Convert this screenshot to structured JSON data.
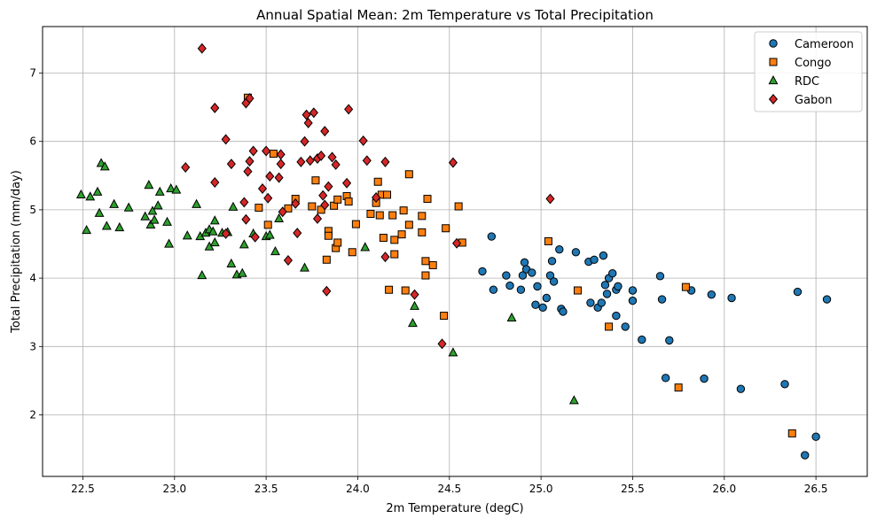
{
  "chart_data": {
    "type": "scatter",
    "title": "Annual Spatial Mean: 2m Temperature vs Total Precipitation",
    "xlabel": "2m Temperature (degC)",
    "ylabel": "Total Precipitation (mm/day)",
    "xlim": [
      22.28,
      26.78
    ],
    "ylim": [
      1.1,
      7.68
    ],
    "x_ticks": [
      22.5,
      23.0,
      23.5,
      24.0,
      24.5,
      25.0,
      25.5,
      26.0,
      26.5
    ],
    "x_tick_labels": [
      "22.5",
      "23.0",
      "23.5",
      "24.0",
      "24.5",
      "25.0",
      "25.5",
      "26.0",
      "26.5"
    ],
    "y_ticks": [
      2,
      3,
      4,
      5,
      6,
      7
    ],
    "y_tick_labels": [
      "2",
      "3",
      "4",
      "5",
      "6",
      "7"
    ],
    "grid": true,
    "legend_position": "top-right",
    "series": [
      {
        "name": "Cameroon",
        "color": "#1f77b4",
        "marker": "circle",
        "points": [
          [
            24.68,
            4.1
          ],
          [
            24.73,
            4.61
          ],
          [
            24.74,
            3.83
          ],
          [
            24.81,
            4.04
          ],
          [
            24.83,
            3.89
          ],
          [
            24.89,
            3.83
          ],
          [
            24.9,
            4.04
          ],
          [
            24.91,
            4.23
          ],
          [
            24.92,
            4.13
          ],
          [
            24.95,
            4.08
          ],
          [
            24.97,
            3.61
          ],
          [
            24.98,
            3.88
          ],
          [
            25.01,
            3.57
          ],
          [
            25.03,
            3.71
          ],
          [
            25.05,
            4.04
          ],
          [
            25.06,
            4.25
          ],
          [
            25.07,
            3.95
          ],
          [
            25.1,
            4.42
          ],
          [
            25.11,
            3.55
          ],
          [
            25.12,
            3.51
          ],
          [
            25.19,
            4.38
          ],
          [
            25.26,
            4.24
          ],
          [
            25.27,
            3.64
          ],
          [
            25.29,
            4.27
          ],
          [
            25.31,
            3.57
          ],
          [
            25.33,
            3.64
          ],
          [
            25.34,
            4.33
          ],
          [
            25.35,
            3.9
          ],
          [
            25.36,
            3.77
          ],
          [
            25.37,
            4.0
          ],
          [
            25.39,
            4.07
          ],
          [
            25.41,
            3.45
          ],
          [
            25.41,
            3.83
          ],
          [
            25.42,
            3.88
          ],
          [
            25.46,
            3.29
          ],
          [
            25.5,
            3.82
          ],
          [
            25.5,
            3.67
          ],
          [
            25.55,
            3.1
          ],
          [
            25.65,
            4.03
          ],
          [
            25.66,
            3.69
          ],
          [
            25.68,
            2.54
          ],
          [
            25.7,
            3.09
          ],
          [
            25.82,
            3.82
          ],
          [
            25.89,
            2.53
          ],
          [
            25.93,
            3.76
          ],
          [
            26.04,
            3.71
          ],
          [
            26.09,
            2.38
          ],
          [
            26.33,
            2.45
          ],
          [
            26.4,
            3.8
          ],
          [
            26.56,
            3.69
          ],
          [
            26.5,
            1.68
          ],
          [
            26.44,
            1.41
          ]
        ]
      },
      {
        "name": "Congo",
        "color": "#ff7f0e",
        "marker": "square",
        "points": [
          [
            23.4,
            6.64
          ],
          [
            23.46,
            5.03
          ],
          [
            23.51,
            4.78
          ],
          [
            23.54,
            5.82
          ],
          [
            23.62,
            5.02
          ],
          [
            23.66,
            5.16
          ],
          [
            23.75,
            5.05
          ],
          [
            23.77,
            5.43
          ],
          [
            23.8,
            5.0
          ],
          [
            23.83,
            4.27
          ],
          [
            23.84,
            4.69
          ],
          [
            23.84,
            4.62
          ],
          [
            23.87,
            5.06
          ],
          [
            23.88,
            4.44
          ],
          [
            23.89,
            5.15
          ],
          [
            23.89,
            4.52
          ],
          [
            23.94,
            5.2
          ],
          [
            23.95,
            5.12
          ],
          [
            23.97,
            4.38
          ],
          [
            23.99,
            4.79
          ],
          [
            24.07,
            4.94
          ],
          [
            24.1,
            5.1
          ],
          [
            24.11,
            5.41
          ],
          [
            24.12,
            4.92
          ],
          [
            24.13,
            5.22
          ],
          [
            24.14,
            4.59
          ],
          [
            24.16,
            5.22
          ],
          [
            24.17,
            3.83
          ],
          [
            24.19,
            4.92
          ],
          [
            24.2,
            4.35
          ],
          [
            24.2,
            4.56
          ],
          [
            24.24,
            4.64
          ],
          [
            24.25,
            4.99
          ],
          [
            24.26,
            3.82
          ],
          [
            24.28,
            5.52
          ],
          [
            24.28,
            4.78
          ],
          [
            24.35,
            4.91
          ],
          [
            24.35,
            4.67
          ],
          [
            24.37,
            4.04
          ],
          [
            24.37,
            4.25
          ],
          [
            24.38,
            5.16
          ],
          [
            24.41,
            4.19
          ],
          [
            24.47,
            3.45
          ],
          [
            24.48,
            4.73
          ],
          [
            24.55,
            5.05
          ],
          [
            24.57,
            4.52
          ],
          [
            25.04,
            4.54
          ],
          [
            25.2,
            3.82
          ],
          [
            25.37,
            3.29
          ],
          [
            25.75,
            2.4
          ],
          [
            25.79,
            3.87
          ],
          [
            26.37,
            1.73
          ]
        ]
      },
      {
        "name": "RDC",
        "color": "#2ca02c",
        "marker": "triangle",
        "points": [
          [
            22.49,
            5.22
          ],
          [
            22.52,
            4.7
          ],
          [
            22.54,
            5.19
          ],
          [
            22.58,
            5.26
          ],
          [
            22.59,
            4.95
          ],
          [
            22.6,
            5.68
          ],
          [
            22.62,
            5.63
          ],
          [
            22.63,
            4.76
          ],
          [
            22.67,
            5.08
          ],
          [
            22.7,
            4.74
          ],
          [
            22.75,
            5.03
          ],
          [
            22.84,
            4.9
          ],
          [
            22.86,
            5.36
          ],
          [
            22.87,
            4.78
          ],
          [
            22.88,
            4.98
          ],
          [
            22.89,
            4.85
          ],
          [
            22.91,
            5.06
          ],
          [
            22.92,
            5.26
          ],
          [
            22.96,
            4.82
          ],
          [
            22.97,
            4.5
          ],
          [
            22.98,
            5.31
          ],
          [
            23.01,
            5.29
          ],
          [
            23.07,
            4.62
          ],
          [
            23.12,
            5.08
          ],
          [
            23.14,
            4.61
          ],
          [
            23.15,
            4.04
          ],
          [
            23.17,
            4.66
          ],
          [
            23.19,
            4.71
          ],
          [
            23.19,
            4.46
          ],
          [
            23.21,
            4.68
          ],
          [
            23.22,
            4.52
          ],
          [
            23.22,
            4.84
          ],
          [
            23.26,
            4.66
          ],
          [
            23.29,
            4.67
          ],
          [
            23.31,
            4.21
          ],
          [
            23.32,
            5.04
          ],
          [
            23.34,
            4.05
          ],
          [
            23.37,
            4.07
          ],
          [
            23.38,
            4.49
          ],
          [
            23.43,
            4.65
          ],
          [
            23.5,
            4.61
          ],
          [
            23.52,
            4.63
          ],
          [
            23.55,
            4.39
          ],
          [
            23.57,
            4.87
          ],
          [
            23.71,
            4.15
          ],
          [
            24.04,
            4.45
          ],
          [
            24.3,
            3.34
          ],
          [
            24.31,
            3.59
          ],
          [
            24.52,
            2.91
          ],
          [
            24.84,
            3.42
          ],
          [
            25.18,
            2.21
          ]
        ]
      },
      {
        "name": "Gabon",
        "color": "#d62728",
        "marker": "diamond",
        "points": [
          [
            23.15,
            7.36
          ],
          [
            23.22,
            6.49
          ],
          [
            23.28,
            6.03
          ],
          [
            23.39,
            6.56
          ],
          [
            23.41,
            6.63
          ],
          [
            23.06,
            5.62
          ],
          [
            23.22,
            5.4
          ],
          [
            23.28,
            4.65
          ],
          [
            23.31,
            5.67
          ],
          [
            23.38,
            5.11
          ],
          [
            23.39,
            4.86
          ],
          [
            23.4,
            5.56
          ],
          [
            23.41,
            5.71
          ],
          [
            23.43,
            5.86
          ],
          [
            23.44,
            4.6
          ],
          [
            23.48,
            5.31
          ],
          [
            23.5,
            5.86
          ],
          [
            23.51,
            5.17
          ],
          [
            23.52,
            5.49
          ],
          [
            23.57,
            5.47
          ],
          [
            23.58,
            5.67
          ],
          [
            23.58,
            5.81
          ],
          [
            23.59,
            4.97
          ],
          [
            23.62,
            4.26
          ],
          [
            23.66,
            5.09
          ],
          [
            23.67,
            4.66
          ],
          [
            23.69,
            5.7
          ],
          [
            23.71,
            6.0
          ],
          [
            23.72,
            6.39
          ],
          [
            23.73,
            6.27
          ],
          [
            23.74,
            5.72
          ],
          [
            23.76,
            6.42
          ],
          [
            23.78,
            5.75
          ],
          [
            23.78,
            4.87
          ],
          [
            23.8,
            5.79
          ],
          [
            23.81,
            5.21
          ],
          [
            23.82,
            6.15
          ],
          [
            23.82,
            5.07
          ],
          [
            23.83,
            3.81
          ],
          [
            23.84,
            5.34
          ],
          [
            23.86,
            5.77
          ],
          [
            23.88,
            5.66
          ],
          [
            23.94,
            5.39
          ],
          [
            23.95,
            6.47
          ],
          [
            24.03,
            6.01
          ],
          [
            24.05,
            5.72
          ],
          [
            24.1,
            5.18
          ],
          [
            24.15,
            5.7
          ],
          [
            24.15,
            4.31
          ],
          [
            24.31,
            3.76
          ],
          [
            24.46,
            3.04
          ],
          [
            24.52,
            5.69
          ],
          [
            24.54,
            4.51
          ],
          [
            25.05,
            5.16
          ]
        ]
      }
    ]
  }
}
